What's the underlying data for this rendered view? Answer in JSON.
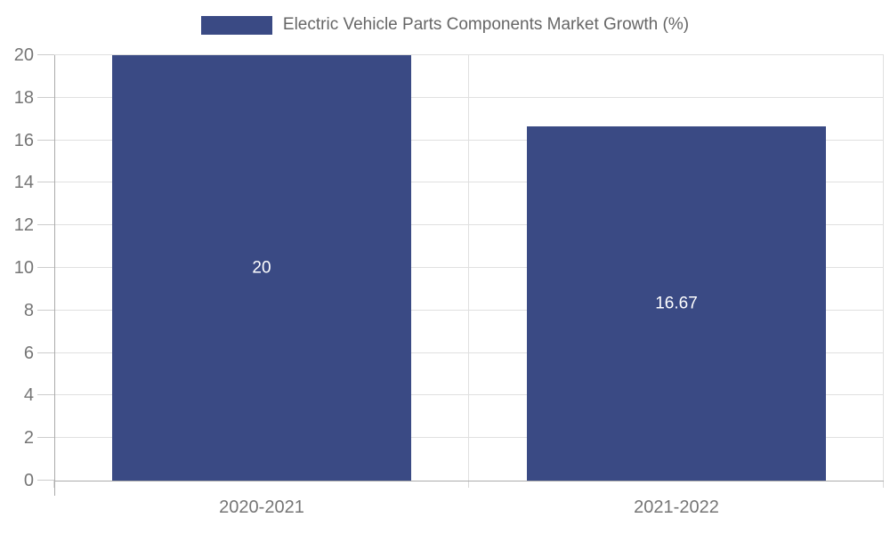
{
  "chart_data": {
    "type": "bar",
    "title": "Electric Vehicle Parts Components Market Growth (%)",
    "categories": [
      "2020-2021",
      "2021-2022"
    ],
    "values": [
      20,
      16.67
    ],
    "data_labels": [
      "20",
      "16.67"
    ],
    "xlabel": "",
    "ylabel": "",
    "ylim": [
      0,
      20
    ],
    "ytick_step": 2,
    "yticks": [
      0,
      2,
      4,
      6,
      8,
      10,
      12,
      14,
      16,
      18,
      20
    ],
    "grid": true,
    "legend_position": "top-center",
    "colors": {
      "bar": "#3a4a84",
      "grid_line": "#e0e0e0",
      "axis_line": "#ababab",
      "tick_text": "#757575",
      "legend_text": "#666666",
      "data_label": "#ffffff",
      "background": "#ffffff"
    }
  },
  "legend": {
    "label": "Electric Vehicle Parts Components Market Growth (%)"
  }
}
